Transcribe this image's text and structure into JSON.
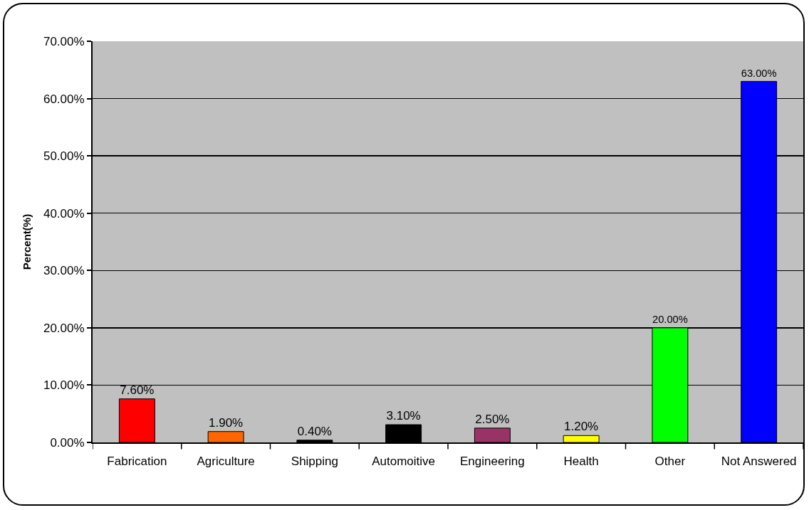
{
  "chart_data": {
    "type": "bar",
    "ylabel": "Percent(%)",
    "categories": [
      "Fabrication",
      "Agriculture",
      "Shipping",
      "Automoitive",
      "Engineering",
      "Health",
      "Other",
      "Not Answered"
    ],
    "values": [
      7.6,
      1.9,
      0.4,
      3.1,
      2.5,
      1.2,
      20,
      63
    ],
    "colors": [
      "#ff0000",
      "#ff6600",
      "#000000",
      "#000000",
      "#993366",
      "#ffff00",
      "#00ff00",
      "#0000ff"
    ],
    "value_labels": [
      "7.60%",
      "1.90%",
      "0.40%",
      "3.10%",
      "2.50%",
      "1.20%",
      "20.00%",
      "63.00%"
    ],
    "ylim": [
      0,
      70
    ],
    "yticks": [
      {
        "value": 0,
        "label": "0.00%"
      },
      {
        "value": 10,
        "label": "10.00%"
      },
      {
        "value": 20,
        "label": "20.00%"
      },
      {
        "value": 30,
        "label": "30.00%"
      },
      {
        "value": 40,
        "label": "40.00%"
      },
      {
        "value": 50,
        "label": "50.00%"
      },
      {
        "value": 60,
        "label": "60.00%"
      },
      {
        "value": 70,
        "label": "70.00%"
      }
    ],
    "grid": "y"
  }
}
